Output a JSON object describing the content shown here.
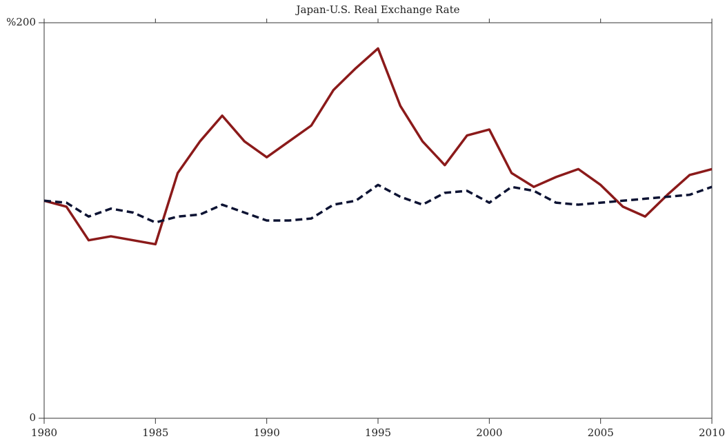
{
  "chart_data": {
    "type": "line",
    "title": "Japan-U.S. Real Exchange Rate",
    "x": [
      1980,
      1981,
      1982,
      1983,
      1984,
      1985,
      1986,
      1987,
      1988,
      1989,
      1990,
      1991,
      1992,
      1993,
      1994,
      1995,
      1996,
      1997,
      1998,
      1999,
      2000,
      2001,
      2002,
      2003,
      2004,
      2005,
      2006,
      2007,
      2008,
      2009,
      2010
    ],
    "series": [
      {
        "color": "#8b1a1a",
        "dashed": false,
        "values": [
          110,
          107,
          90,
          92,
          90,
          88,
          124,
          140,
          153,
          140,
          132,
          140,
          148,
          166,
          177,
          187,
          158,
          140,
          128,
          143,
          146,
          124,
          117,
          122,
          126,
          118,
          107,
          102,
          113,
          123,
          126
        ]
      },
      {
        "color": "#0d1333",
        "dashed": true,
        "values": [
          110,
          109,
          102,
          106,
          104,
          99,
          102,
          103,
          108,
          104,
          100,
          100,
          101,
          108,
          110,
          118,
          112,
          108,
          114,
          115,
          109,
          117,
          115,
          109,
          108,
          109,
          110,
          111,
          112,
          113,
          117
        ]
      }
    ],
    "xlim": [
      1980,
      2010
    ],
    "xticks": [
      1980,
      1985,
      1990,
      1995,
      2000,
      2005,
      2010
    ],
    "ylim": [
      0,
      200
    ],
    "yticks": [
      0,
      {
        "value": 200,
        "label": "%200"
      }
    ]
  }
}
